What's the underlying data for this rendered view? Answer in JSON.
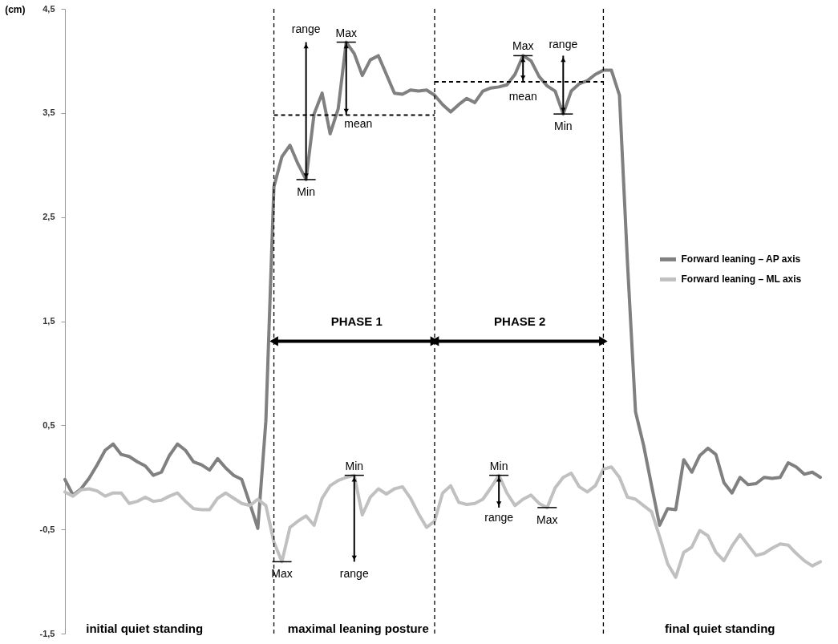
{
  "chart_data": {
    "type": "line",
    "ylabel": "(cm)",
    "ylim": [
      -1.5,
      4.5
    ],
    "yticks": [
      {
        "value": -1.5,
        "label": "-1,5"
      },
      {
        "value": -0.5,
        "label": "-0,5"
      },
      {
        "value": 0.5,
        "label": "0,5"
      },
      {
        "value": 1.5,
        "label": "1,5"
      },
      {
        "value": 2.5,
        "label": "2,5"
      },
      {
        "value": 3.5,
        "label": "3,5"
      },
      {
        "value": 4.5,
        "label": "4,5"
      }
    ],
    "tick_labels": "y",
    "grid": false,
    "legend": "right",
    "line_style": "solid",
    "categories": [
      null,
      null,
      null,
      null,
      null,
      null,
      null,
      null,
      null,
      null,
      null,
      null,
      null,
      null,
      null,
      null,
      null,
      null,
      null,
      null,
      null,
      null,
      null,
      null,
      null,
      null,
      null,
      null,
      null,
      null,
      null,
      null,
      null,
      null,
      null,
      null,
      null,
      null,
      null,
      null,
      null,
      null,
      null,
      null,
      null,
      null,
      null,
      null,
      null,
      null,
      null,
      null,
      null,
      null,
      null,
      null,
      null,
      null,
      null,
      null,
      null,
      null,
      null,
      null,
      null,
      null,
      null,
      null,
      null,
      null,
      null,
      null,
      null,
      null,
      null,
      null,
      null,
      null,
      null,
      null,
      null,
      null,
      null,
      null,
      null,
      null,
      null,
      null,
      null,
      null,
      null,
      null,
      null,
      null,
      null
    ],
    "series": [
      {
        "name": "Forward leaning – AP axis",
        "color": "#808080",
        "values": [
          -0.02,
          -0.17,
          -0.11,
          -0.01,
          0.12,
          0.26,
          0.32,
          0.22,
          0.2,
          0.15,
          0.11,
          0.02,
          0.05,
          0.21,
          0.32,
          0.26,
          0.15,
          0.12,
          0.07,
          0.18,
          0.09,
          0.02,
          -0.02,
          -0.25,
          -0.49,
          0.54,
          2.79,
          3.08,
          3.19,
          3.01,
          2.86,
          3.49,
          3.69,
          3.3,
          3.54,
          4.18,
          4.07,
          3.86,
          4.01,
          4.05,
          3.87,
          3.69,
          3.68,
          3.72,
          3.71,
          3.72,
          3.67,
          3.58,
          3.51,
          3.58,
          3.64,
          3.6,
          3.71,
          3.74,
          3.75,
          3.77,
          3.87,
          4.05,
          4.0,
          3.85,
          3.76,
          3.71,
          3.49,
          3.71,
          3.78,
          3.81,
          3.87,
          3.91,
          3.91,
          3.67,
          2.06,
          0.63,
          0.31,
          -0.08,
          -0.46,
          -0.3,
          -0.31,
          0.17,
          0.05,
          0.21,
          0.28,
          0.22,
          -0.05,
          -0.15,
          0.0,
          -0.07,
          -0.06,
          0.0,
          -0.01,
          0.0,
          0.14,
          0.1,
          0.03,
          0.05,
          0.0
        ]
      },
      {
        "name": "Forward leaning – ML axis",
        "color": "#c0c0c0",
        "values": [
          -0.14,
          -0.18,
          -0.12,
          -0.11,
          -0.13,
          -0.18,
          -0.15,
          -0.15,
          -0.25,
          -0.23,
          -0.19,
          -0.23,
          -0.22,
          -0.18,
          -0.15,
          -0.23,
          -0.3,
          -0.31,
          -0.31,
          -0.2,
          -0.15,
          -0.2,
          -0.25,
          -0.27,
          -0.21,
          -0.27,
          -0.62,
          -0.81,
          -0.48,
          -0.42,
          -0.37,
          -0.46,
          -0.2,
          -0.08,
          -0.03,
          0.0,
          0.02,
          -0.36,
          -0.19,
          -0.11,
          -0.16,
          -0.11,
          -0.09,
          -0.2,
          -0.35,
          -0.48,
          -0.42,
          -0.15,
          -0.08,
          -0.24,
          -0.26,
          -0.25,
          -0.21,
          -0.1,
          0.02,
          -0.15,
          -0.27,
          -0.21,
          -0.17,
          -0.25,
          -0.29,
          -0.1,
          0.0,
          0.04,
          -0.09,
          -0.14,
          -0.08,
          0.08,
          0.1,
          0.0,
          -0.19,
          -0.21,
          -0.27,
          -0.33,
          -0.57,
          -0.83,
          -0.96,
          -0.72,
          -0.67,
          -0.51,
          -0.56,
          -0.72,
          -0.8,
          -0.66,
          -0.55,
          -0.65,
          -0.75,
          -0.73,
          -0.68,
          -0.64,
          -0.65,
          -0.73,
          -0.8,
          -0.85,
          -0.81
        ]
      },
      {
        "color": "#000000",
        "type": "line",
        "line_style": "dashed",
        "values": [
          null,
          null,
          null,
          null,
          null,
          null,
          null,
          null,
          null,
          null,
          null,
          null,
          null,
          null,
          null,
          null,
          null,
          null,
          null,
          null,
          null,
          null,
          null,
          null,
          null,
          null,
          3.48,
          3.48,
          3.48,
          3.48,
          3.48,
          3.48,
          3.48,
          3.48,
          3.48,
          3.48,
          3.48,
          3.48,
          3.48,
          3.48,
          3.48,
          3.48,
          3.48,
          3.48,
          3.48,
          3.48,
          3.48,
          null,
          null,
          null,
          null,
          null,
          null,
          null,
          null,
          null,
          null,
          null,
          null,
          null,
          null,
          null,
          null,
          null,
          null,
          null,
          null,
          null,
          null,
          null,
          null,
          null,
          null,
          null,
          null,
          null,
          null,
          null,
          null,
          null,
          null,
          null,
          null,
          null,
          null,
          null,
          null,
          null,
          null,
          null,
          null,
          null,
          null,
          null,
          null
        ]
      },
      {
        "color": "#000000",
        "type": "line",
        "line_style": "dashed",
        "values": [
          null,
          null,
          null,
          null,
          null,
          null,
          null,
          null,
          null,
          null,
          null,
          null,
          null,
          null,
          null,
          null,
          null,
          null,
          null,
          null,
          null,
          null,
          null,
          null,
          null,
          null,
          null,
          null,
          null,
          null,
          null,
          null,
          null,
          null,
          null,
          null,
          null,
          null,
          null,
          null,
          null,
          null,
          null,
          null,
          null,
          null,
          3.8,
          3.8,
          3.8,
          3.8,
          3.8,
          3.8,
          3.8,
          3.8,
          3.8,
          3.8,
          3.8,
          3.8,
          3.8,
          3.8,
          3.8,
          3.8,
          3.8,
          3.8,
          3.8,
          3.8,
          3.8,
          3.8,
          null,
          null,
          null,
          null,
          null,
          null,
          null,
          null,
          null,
          null,
          null,
          null,
          null,
          null,
          null,
          null,
          null,
          null,
          null,
          null,
          null,
          null,
          null,
          null,
          null,
          null,
          null
        ]
      }
    ],
    "annotations": [
      {
        "text": "Max",
        "y": 4.18
      },
      {
        "text": "Min",
        "y": 2.86
      },
      "range",
      "mean",
      {
        "text": "Max",
        "y": 4.05
      },
      {
        "text": "Min",
        "y": 3.49
      },
      "range",
      "mean",
      {
        "text": "Max",
        "y": -0.81
      },
      {
        "text": "Min",
        "y": 0.02
      },
      "range",
      {
        "text": "Max",
        "y": -0.29
      },
      {
        "text": "Min",
        "y": 0.02
      },
      "range",
      "PHASE 1",
      "PHASE 2",
      "initial quiet standing",
      "maximal leaning posture",
      "final quiet standing"
    ]
  }
}
